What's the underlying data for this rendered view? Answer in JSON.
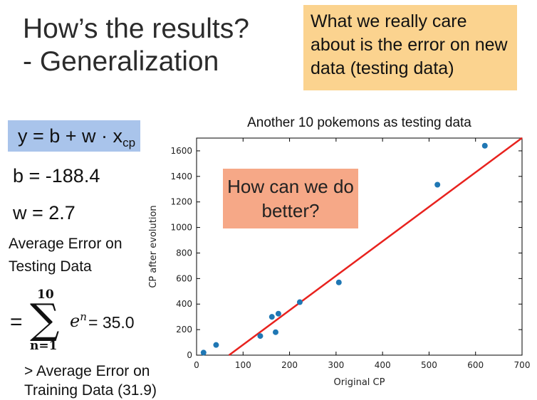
{
  "slide": {
    "title_line1": "How’s the results?",
    "title_line2": "- Generalization",
    "callout": "What we really care about is the error on new data (testing data)",
    "formula_main": "y = b + w · x",
    "formula_sub": "cp",
    "b_text": "b = -188.4",
    "w_text": "w = 2.7",
    "avg_error_label": "Average Error on Testing Data",
    "sum_eq": "=",
    "sum_upper": "10",
    "sum_sigma": "∑",
    "sum_lower": "n=1",
    "sum_term": "e",
    "sum_term_sup": "n",
    "sum_value": "= 35.0",
    "compare_text": "> Average Error on Training Data (31.9)",
    "note": "How can we do better?"
  },
  "colors": {
    "callout_bg": "#fbd38f",
    "formula_bg": "#a9c4eb",
    "note_bg": "#f6a887",
    "point": "#1f77b4",
    "line": "#e8221e"
  },
  "chart_data": {
    "type": "scatter",
    "title": "Another 10 pokemons as testing data",
    "xlabel": "Original CP",
    "ylabel": "CP after evolution",
    "xlim": [
      0,
      700
    ],
    "ylim": [
      0,
      1700
    ],
    "xticks": [
      0,
      100,
      200,
      300,
      400,
      500,
      600,
      700
    ],
    "yticks": [
      0,
      200,
      400,
      600,
      800,
      1000,
      1200,
      1400,
      1600
    ],
    "points": [
      {
        "x": 15,
        "y": 20
      },
      {
        "x": 42,
        "y": 80
      },
      {
        "x": 137,
        "y": 150
      },
      {
        "x": 162,
        "y": 300
      },
      {
        "x": 170,
        "y": 180
      },
      {
        "x": 176,
        "y": 325
      },
      {
        "x": 222,
        "y": 415
      },
      {
        "x": 306,
        "y": 570
      },
      {
        "x": 518,
        "y": 1335
      },
      {
        "x": 620,
        "y": 1640
      }
    ],
    "regression_line": {
      "b": -188.4,
      "w": 2.7
    }
  }
}
